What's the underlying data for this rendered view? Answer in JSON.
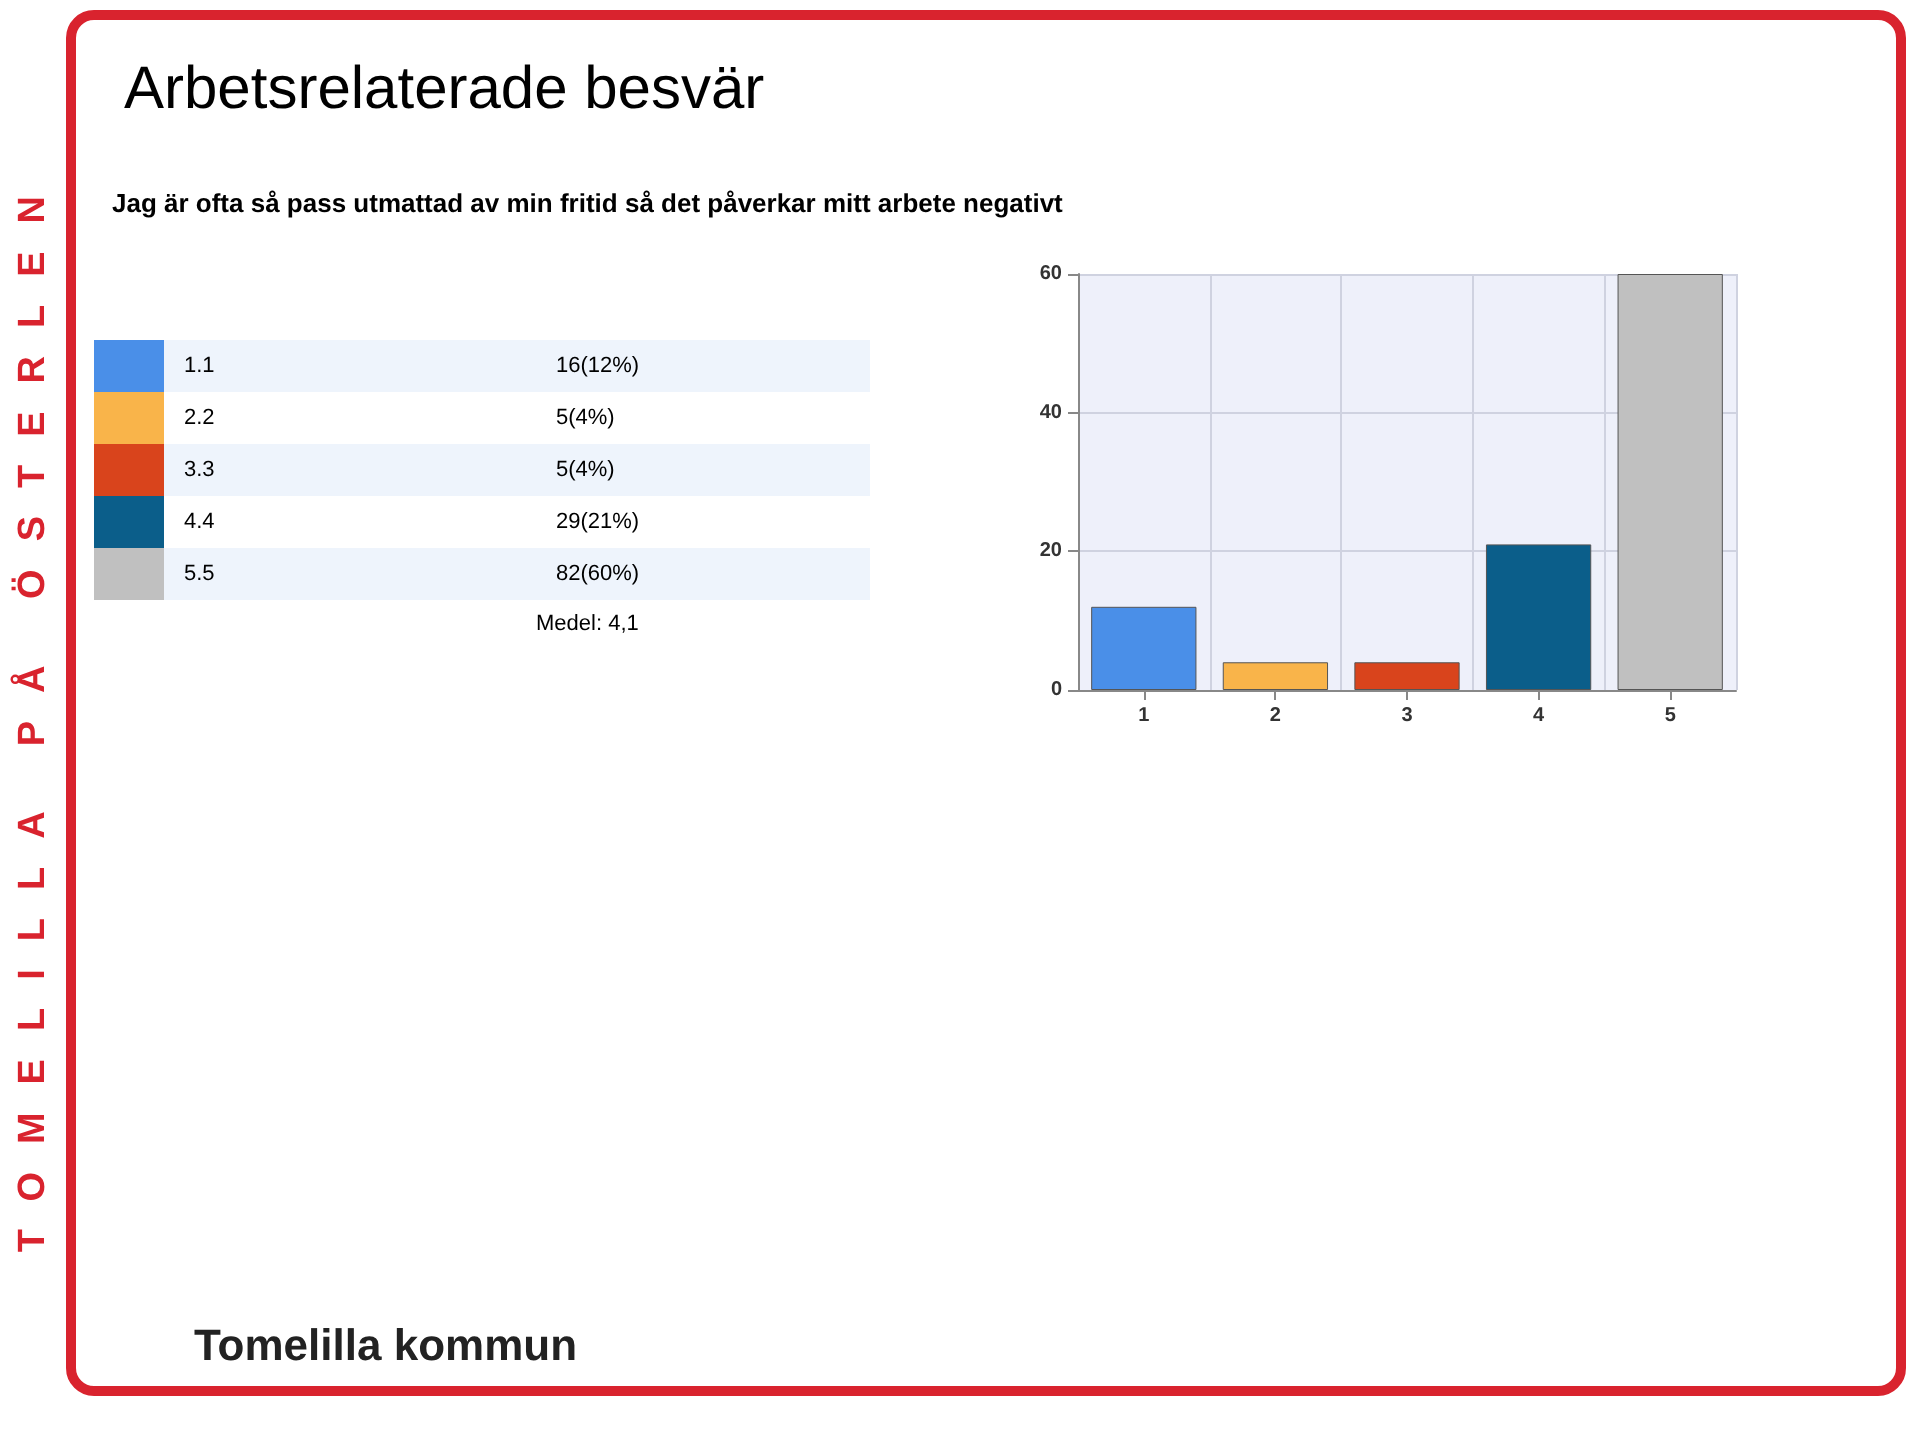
{
  "chart_data": {
    "type": "bar",
    "title": "Arbetsrelaterade besvär",
    "subtitle": "Jag är ofta så pass utmattad av min fritid så det påverkar mitt arbete negativt",
    "categories": [
      "1",
      "2",
      "3",
      "4",
      "5"
    ],
    "values": [
      12,
      4,
      4,
      21,
      60
    ],
    "colors": [
      "#4a8fe8",
      "#f9b44a",
      "#d9441c",
      "#0b5e8a",
      "#c0c0c0"
    ],
    "ylim": [
      0,
      60
    ],
    "yticks": [
      0,
      20,
      40,
      60
    ],
    "grid": true,
    "annotations": [
      "1.1",
      "2.2",
      "3.3",
      "4.4",
      "5.5",
      "16(12%)",
      "5(4%)",
      "5(4%)",
      "29(21%)",
      "82(60%)",
      "Medel: 4,1",
      "TOMELILLA PÅ ÖSTERLEN",
      "Tomelilla kommun"
    ]
  }
}
